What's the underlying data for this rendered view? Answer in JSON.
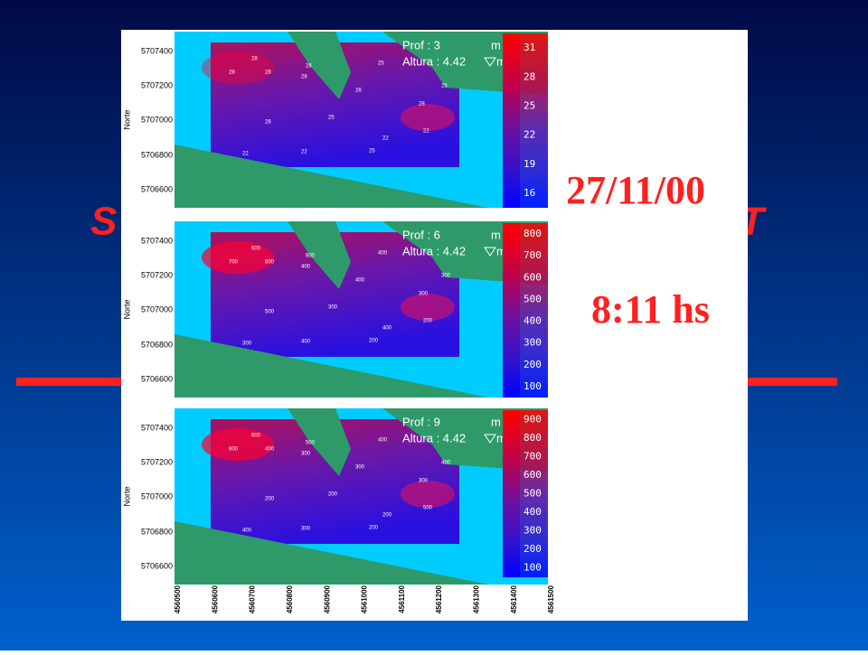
{
  "slide": {
    "title_fragments": [
      "S",
      "T"
    ],
    "date": "27/11/00",
    "time": "8:11 hs"
  },
  "axes": {
    "y_label": "Norte",
    "y_ticks": [
      "5707400",
      "5707200",
      "5707000",
      "5706800",
      "5706600"
    ],
    "x_ticks": [
      "4560500",
      "4560600",
      "4560700",
      "4560800",
      "4560900",
      "4561000",
      "4561100",
      "4561200",
      "4561300",
      "4561400",
      "4561500"
    ]
  },
  "panels": [
    {
      "depth_text": "Prof   :  3",
      "depth_unit": "m",
      "height_text": "Altura :  4.42",
      "height_unit": "m",
      "colorbar": [
        "31",
        "28",
        "25",
        "22",
        "19",
        "16"
      ],
      "point_labels": [
        "28",
        "28",
        "28",
        "28",
        "28",
        "25",
        "28",
        "25",
        "28",
        "28",
        "25",
        "22",
        "22",
        "22",
        "22",
        "25"
      ]
    },
    {
      "depth_text": "Prof   :  6",
      "depth_unit": "m",
      "height_text": "Altura :  4.42",
      "height_unit": "m",
      "colorbar": [
        "800",
        "700",
        "600",
        "500",
        "400",
        "300",
        "200",
        "100"
      ],
      "point_labels": [
        "700",
        "600",
        "800",
        "400",
        "600",
        "400",
        "400",
        "300",
        "300",
        "500",
        "300",
        "400",
        "200",
        "300",
        "400",
        "200"
      ]
    },
    {
      "depth_text": "Prof   :  9",
      "depth_unit": "m",
      "height_text": "Altura :  4.42",
      "height_unit": "m",
      "colorbar": [
        "900",
        "800",
        "700",
        "600",
        "500",
        "400",
        "300",
        "200",
        "100"
      ],
      "point_labels": [
        "800",
        "600",
        "400",
        "300",
        "500",
        "400",
        "300",
        "400",
        "300",
        "200",
        "200",
        "200",
        "500",
        "400",
        "300",
        "200"
      ]
    }
  ]
}
